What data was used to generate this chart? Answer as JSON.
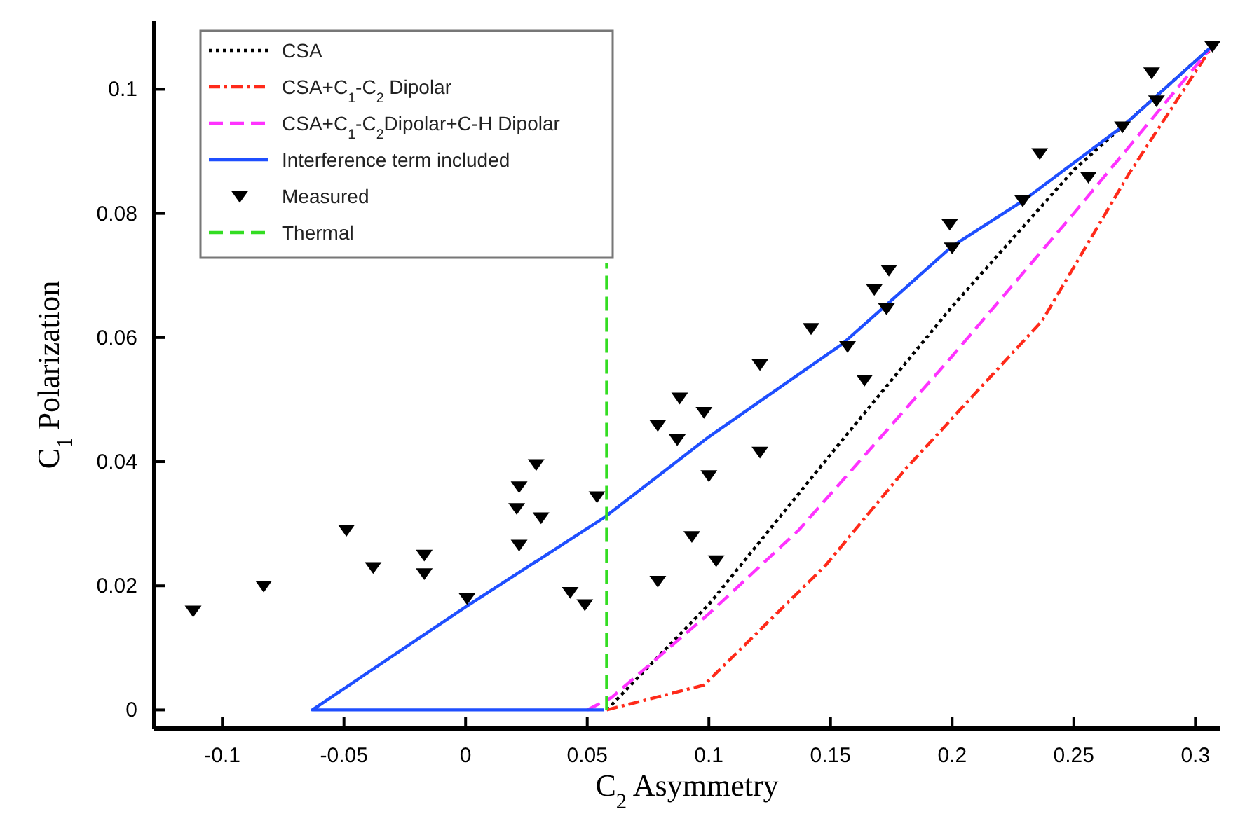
{
  "chart_data": {
    "type": "line",
    "xlabel": "C$_{2}$ Asymmetry",
    "ylabel": "C$_{1}$ Polarization",
    "xlim": [
      -0.128,
      0.31
    ],
    "ylim": [
      -0.003,
      0.111
    ],
    "xticks": [
      -0.1,
      -0.05,
      0,
      0.05,
      0.1,
      0.15,
      0.2,
      0.25,
      0.3
    ],
    "yticks": [
      0,
      0.02,
      0.04,
      0.06,
      0.08,
      0.1
    ],
    "legend": "top left",
    "grid": false,
    "series": [
      {
        "name": "CSA",
        "color": "#000000",
        "line_style": "dotted",
        "x": [
          0.058,
          0.1,
          0.153,
          0.2,
          0.25,
          0.307
        ],
        "values": [
          0,
          0.017,
          0.0426,
          0.065,
          0.087,
          0.107
        ]
      },
      {
        "name": "CSA+C$_{1}$-C$_{2}$ Dipolar",
        "color": "#ff2a1a",
        "line_style": "dashdot",
        "x": [
          0.058,
          0.098,
          0.148,
          0.181,
          0.237,
          0.273,
          0.307
        ],
        "values": [
          0,
          0.004,
          0.0233,
          0.0389,
          0.0627,
          0.0866,
          0.107
        ]
      },
      {
        "name": "CSA+C$_{1}$-C$_{2}$Dipolar+C-H Dipolar",
        "color": "#ff33ff",
        "line_style": "dashed",
        "x": [
          0.05,
          0.06,
          0.1,
          0.137,
          0.2,
          0.25,
          0.307
        ],
        "values": [
          0,
          0.002,
          0.0155,
          0.029,
          0.057,
          0.08,
          0.107
        ]
      },
      {
        "name": "Interference term included",
        "color": "#1f4fff",
        "line_style": "solid",
        "x": [
          0.057,
          -0.063,
          0,
          0.057,
          0.1,
          0.155,
          0.2,
          0.229,
          0.27,
          0.307
        ],
        "values": [
          0,
          0,
          0.0166,
          0.031,
          0.044,
          0.059,
          0.0747,
          0.082,
          0.094,
          0.107
        ]
      },
      {
        "name": "Measured",
        "type": "scatter",
        "marker": "triangle",
        "color": "#000000",
        "x": [
          -0.112,
          -0.083,
          -0.049,
          -0.038,
          -0.017,
          -0.017,
          0.0006,
          0.022,
          0.021,
          0.022,
          0.029,
          0.031,
          0.043,
          0.049,
          0.054,
          0.088,
          0.098,
          0.079,
          0.087,
          0.121,
          0.1,
          0.093,
          0.103,
          0.079,
          0.307,
          0.282,
          0.284,
          0.27,
          0.236,
          0.256,
          0.229,
          0.199,
          0.2,
          0.174,
          0.168,
          0.173,
          0.142,
          0.157,
          0.121,
          0.164
        ],
        "values": [
          0.016,
          0.02,
          0.029,
          0.023,
          0.025,
          0.022,
          0.018,
          0.036,
          0.0325,
          0.0266,
          0.0396,
          0.031,
          0.019,
          0.017,
          0.0344,
          0.0503,
          0.048,
          0.0459,
          0.0436,
          0.0416,
          0.0378,
          0.028,
          0.0241,
          0.0208,
          0.107,
          0.1027,
          0.0982,
          0.094,
          0.0897,
          0.0859,
          0.0821,
          0.0783,
          0.0745,
          0.0709,
          0.0678,
          0.0647,
          0.0615,
          0.0586,
          0.0557,
          0.0532
        ]
      },
      {
        "name": "Thermal",
        "color": "#33dd22",
        "line_style": "dashed",
        "x": [
          0.058,
          0.058
        ],
        "values": [
          0,
          0.072
        ]
      }
    ]
  }
}
